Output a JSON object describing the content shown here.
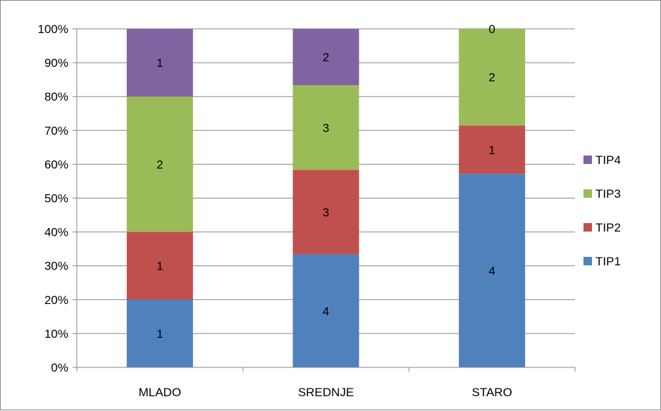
{
  "chart_data": {
    "type": "bar",
    "stacked": "percent",
    "categories": [
      "MLADO",
      "SREDNJE",
      "STARO"
    ],
    "series": [
      {
        "name": "TIP1",
        "values": [
          1,
          4,
          4
        ],
        "color": "#4F81BD"
      },
      {
        "name": "TIP2",
        "values": [
          1,
          3,
          1
        ],
        "color": "#C0504D"
      },
      {
        "name": "TIP3",
        "values": [
          2,
          3,
          2
        ],
        "color": "#9BBB59"
      },
      {
        "name": "TIP4",
        "values": [
          1,
          2,
          0
        ],
        "color": "#8064A2"
      }
    ],
    "y_ticks": [
      "0%",
      "10%",
      "20%",
      "30%",
      "40%",
      "50%",
      "60%",
      "70%",
      "80%",
      "90%",
      "100%"
    ],
    "ylim": [
      0,
      100
    ],
    "grid": true,
    "legend_position": "right",
    "legend_order": [
      "TIP4",
      "TIP3",
      "TIP2",
      "TIP1"
    ]
  }
}
